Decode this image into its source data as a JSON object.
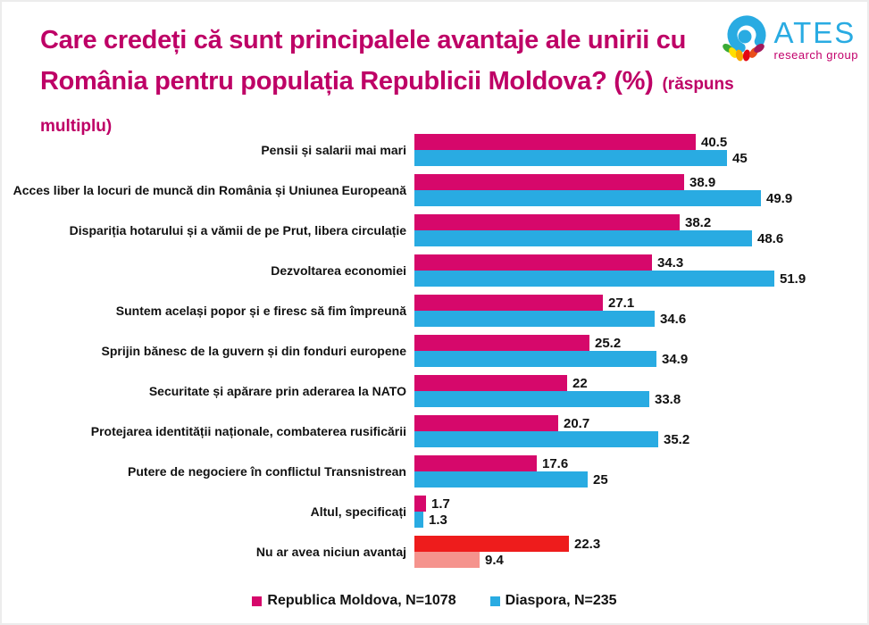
{
  "header": {
    "title_line1": "Care credeți că sunt principalele avantaje ale unirii cu",
    "title_line2": "România pentru populația Republicii Moldova? (%)",
    "title_suffix": "(răspuns multiplu)",
    "logo": {
      "name": "ATES",
      "subtitle": "research group",
      "name_color": "#29abe2",
      "subtitle_color": "#c2006b"
    }
  },
  "colors": {
    "title": "#be0066",
    "series_moldova": "#d6086b",
    "series_diaspora": "#29abe2",
    "highlight_moldova": "#ee1c1c",
    "highlight_diaspora": "#f5938d"
  },
  "chart_data": {
    "type": "bar",
    "orientation": "horizontal",
    "axis_max": 52,
    "grid": false,
    "legend_position": "bottom",
    "categories": [
      "Pensii și salarii mai mari",
      "Acces liber la locuri de muncă din România și Uniunea Europeană",
      "Dispariția hotarului și a vămii de pe Prut, libera circulație",
      "Dezvoltarea economiei",
      "Suntem același popor și e firesc să fim împreună",
      "Sprijin bănesc de la guvern și din fonduri europene",
      "Securitate și apărare prin aderarea la NATO",
      "Protejarea identității naționale, combaterea rusificării",
      "Putere de negociere în conflictul Transnistrean",
      "Altul, specificați",
      "Nu ar avea niciun avantaj"
    ],
    "series": [
      {
        "name": "Republica Moldova, N=1078",
        "color": "#d6086b",
        "values": [
          40.5,
          38.9,
          38.2,
          34.3,
          27.1,
          25.2,
          22,
          20.7,
          17.6,
          1.7,
          22.3
        ]
      },
      {
        "name": "Diaspora, N=235",
        "color": "#29abe2",
        "values": [
          45,
          49.9,
          48.6,
          51.9,
          34.6,
          34.9,
          33.8,
          35.2,
          25,
          1.3,
          9.4
        ]
      }
    ],
    "highlight": {
      "category_index": 10,
      "colors": [
        "#ee1c1c",
        "#f5938d"
      ]
    }
  },
  "legend": [
    {
      "label": "Republica Moldova, N=1078",
      "color": "#d6086b"
    },
    {
      "label": "Diaspora, N=235",
      "color": "#29abe2"
    }
  ]
}
